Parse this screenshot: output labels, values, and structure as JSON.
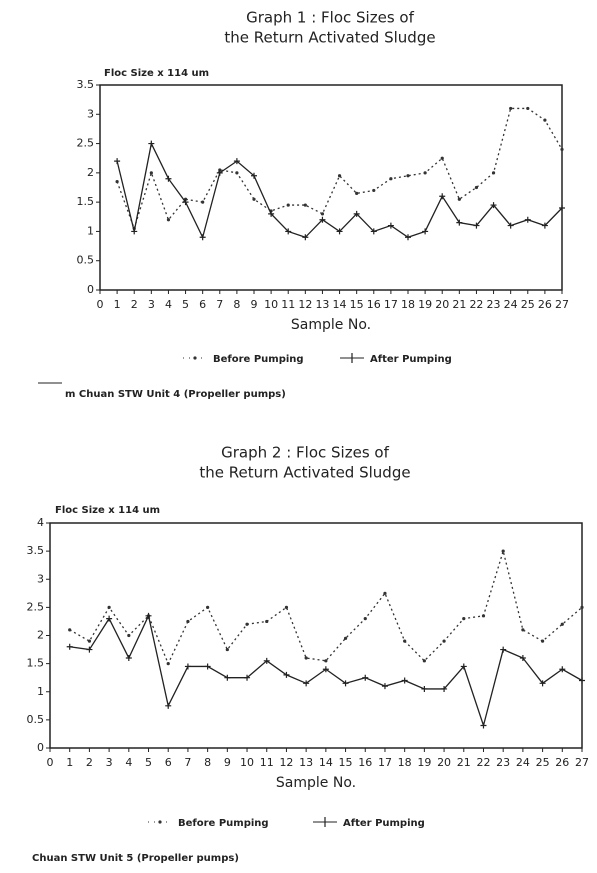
{
  "chart_data": [
    {
      "type": "line",
      "title": [
        "Graph 1  :  Floc Sizes of",
        "the Return Activated Sludge"
      ],
      "y_label": "Floc Size  x 114 um",
      "x_label": "Sample No.",
      "caption": "m Chuan STW Unit 4 (Propeller pumps)",
      "x": [
        1,
        2,
        3,
        4,
        5,
        6,
        7,
        8,
        9,
        10,
        11,
        12,
        13,
        14,
        15,
        16,
        17,
        18,
        19,
        20,
        21,
        22,
        23,
        24,
        25,
        26,
        27
      ],
      "xlim": [
        0,
        27
      ],
      "xticks": [
        0,
        1,
        2,
        3,
        4,
        5,
        6,
        7,
        8,
        9,
        10,
        11,
        12,
        13,
        14,
        15,
        16,
        17,
        18,
        19,
        20,
        21,
        22,
        23,
        24,
        25,
        26,
        27
      ],
      "ylim": [
        0,
        3.5
      ],
      "yticks": [
        0,
        0.5,
        1,
        1.5,
        2,
        2.5,
        3,
        3.5
      ],
      "series": [
        {
          "name": "Before Pumping",
          "color": "#333",
          "line_style": "dotted",
          "values": [
            1.85,
            1.05,
            2.0,
            1.2,
            1.55,
            1.5,
            2.05,
            2.0,
            1.55,
            1.35,
            1.45,
            1.45,
            1.3,
            1.95,
            1.65,
            1.7,
            1.9,
            1.95,
            2.0,
            2.25,
            1.55,
            1.75,
            2.0,
            3.1,
            3.1,
            2.9,
            2.4
          ]
        },
        {
          "name": "After Pumping",
          "color": "#222",
          "line_style": "solid",
          "values": [
            2.2,
            1.0,
            2.5,
            1.9,
            1.5,
            0.9,
            2.0,
            2.2,
            1.95,
            1.3,
            1.0,
            0.9,
            1.2,
            1.0,
            1.3,
            1.0,
            1.1,
            0.9,
            1.0,
            1.6,
            1.15,
            1.1,
            1.45,
            1.1,
            1.2,
            1.1,
            1.4
          ]
        }
      ]
    },
    {
      "type": "line",
      "title": [
        "Graph 2  :  Floc Sizes of",
        "the Return Activated Sludge"
      ],
      "y_label": "Floc Size  x 114 um",
      "x_label": "Sample No.",
      "caption": "Chuan STW Unit 5 (Propeller pumps)",
      "x": [
        1,
        2,
        3,
        4,
        5,
        6,
        7,
        8,
        9,
        10,
        11,
        12,
        13,
        14,
        15,
        16,
        17,
        18,
        19,
        20,
        21,
        22,
        23,
        24,
        25,
        26,
        27
      ],
      "xlim": [
        0,
        27
      ],
      "xticks": [
        0,
        1,
        2,
        3,
        4,
        5,
        6,
        7,
        8,
        9,
        10,
        11,
        12,
        13,
        14,
        15,
        16,
        17,
        18,
        19,
        20,
        21,
        22,
        23,
        24,
        25,
        26,
        27
      ],
      "ylim": [
        0,
        4
      ],
      "yticks": [
        0,
        0.5,
        1,
        1.5,
        2,
        2.5,
        3,
        3.5,
        4
      ],
      "series": [
        {
          "name": "Before Pumping",
          "color": "#333",
          "line_style": "dotted",
          "values": [
            2.1,
            1.9,
            2.5,
            2.0,
            2.35,
            1.5,
            2.25,
            2.5,
            1.75,
            2.2,
            2.25,
            2.5,
            1.6,
            1.55,
            1.95,
            2.3,
            2.75,
            1.9,
            1.55,
            1.9,
            2.3,
            2.35,
            3.5,
            2.1,
            1.9,
            2.2,
            2.5
          ]
        },
        {
          "name": "After Pumping",
          "color": "#222",
          "line_style": "solid",
          "values": [
            1.8,
            1.75,
            2.3,
            1.6,
            2.35,
            0.75,
            1.45,
            1.45,
            1.25,
            1.25,
            1.55,
            1.3,
            1.15,
            1.4,
            1.15,
            1.25,
            1.1,
            1.2,
            1.05,
            1.05,
            1.45,
            0.4,
            1.75,
            1.6,
            1.15,
            1.4,
            1.2
          ]
        }
      ]
    }
  ]
}
